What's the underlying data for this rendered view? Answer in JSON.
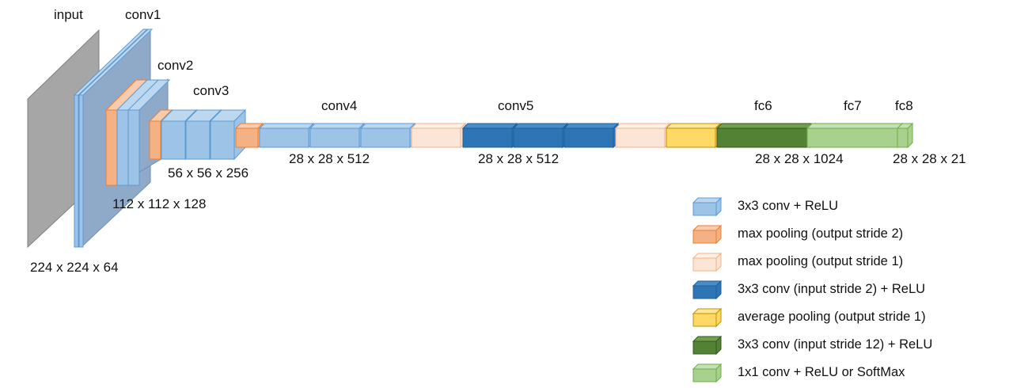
{
  "stages": {
    "input": "input",
    "conv1": "conv1",
    "conv2": "conv2",
    "conv3": "conv3",
    "conv4": "conv4",
    "conv5": "conv5",
    "fc6": "fc6",
    "fc7": "fc7",
    "fc8": "fc8"
  },
  "dims": {
    "d224": "224 x 224 x 64",
    "d112": "112 x 112 x 128",
    "d56": "56 x 56 x 256",
    "d28_conv4": "28 x 28 x 512",
    "d28_conv5": "28 x 28 x 512",
    "d28_fc6": "28 x 28 x 1024",
    "d28_fc8": "28 x 28 x 21"
  },
  "legend": [
    {
      "label": "3x3 conv + ReLU",
      "color": "#9DC3E6"
    },
    {
      "label": "max pooling (output stride 2)",
      "color": "#F4B183"
    },
    {
      "label": "max pooling (output stride 1)",
      "color": "#FBE5D6"
    },
    {
      "label": "3x3 conv (input stride 2) + ReLU",
      "color": "#2E75B6"
    },
    {
      "label": "average pooling (output stride 1)",
      "color": "#FFD966"
    },
    {
      "label": "3x3 conv (input stride 12) + ReLU",
      "color": "#548235"
    },
    {
      "label": "1x1 conv + ReLU or SoftMax",
      "color": "#A9D18E"
    }
  ],
  "colors": {
    "conv": "#9DC3E6",
    "maxpool2": "#F4B183",
    "maxpool1": "#FBE5D6",
    "dilated_conv": "#2E75B6",
    "avgpool": "#FFD966",
    "fc6": "#548235",
    "fc78": "#A9D18E",
    "input": "#A6A6A6",
    "conv1_back": "#8FAAC8"
  }
}
